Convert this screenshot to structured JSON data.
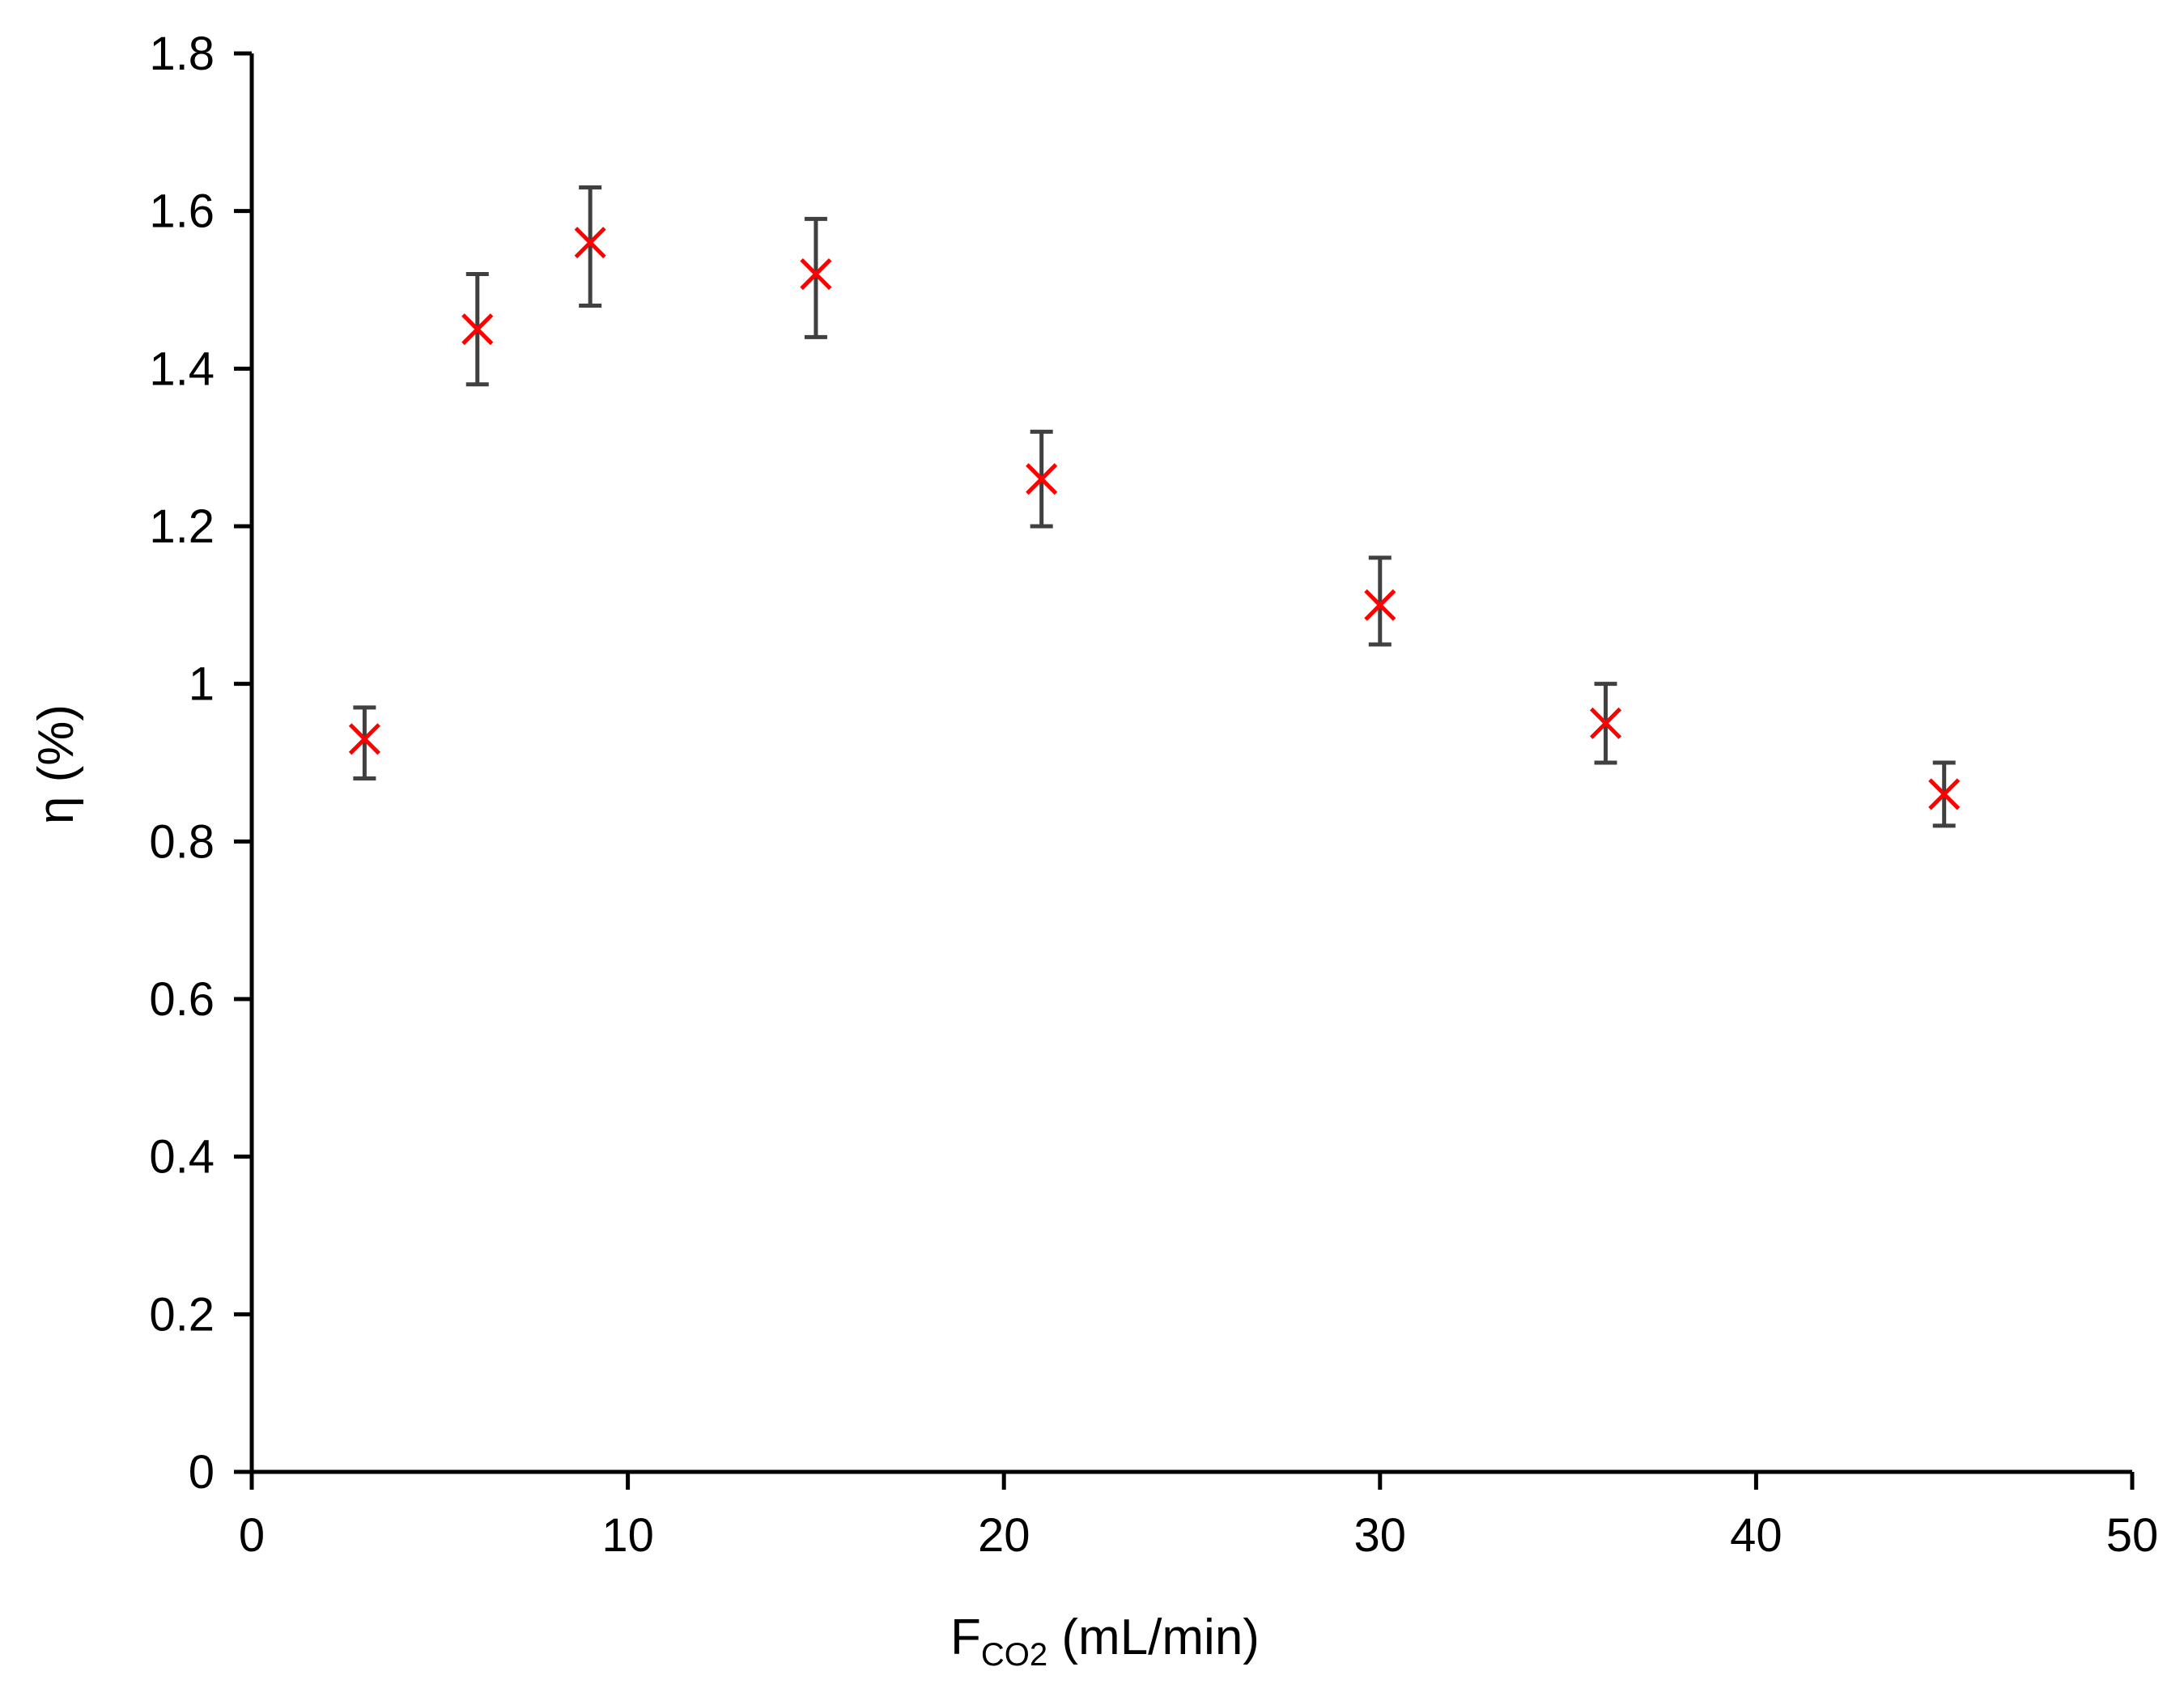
{
  "chart_data": {
    "type": "scatter",
    "title": "",
    "xlabel": {
      "main": "F",
      "sub": "CO2",
      "unit": " (mL/min)"
    },
    "ylabel": "η (%)",
    "xlim": [
      0,
      50
    ],
    "ylim": [
      0,
      1.8
    ],
    "x_ticks": [
      0,
      10,
      20,
      30,
      40,
      50
    ],
    "x_tick_labels": [
      "0",
      "10",
      "20",
      "30",
      "40",
      "50"
    ],
    "y_ticks": [
      0,
      0.2,
      0.4,
      0.6,
      0.8,
      1.0,
      1.2,
      1.4,
      1.6,
      1.8
    ],
    "y_tick_labels": [
      "0",
      "0.2",
      "0.4",
      "0.6",
      "0.8",
      "1",
      "1.2",
      "1.4",
      "1.6",
      "1.8"
    ],
    "grid": false,
    "legend": "none",
    "series": [
      {
        "marker": "x",
        "color": "#ff0000",
        "error_bar_color": "#404040",
        "x": [
          3,
          6,
          9,
          15,
          21,
          30,
          36,
          45
        ],
        "y": [
          0.93,
          1.45,
          1.56,
          1.52,
          1.26,
          1.1,
          0.95,
          0.86
        ],
        "y_err_low": [
          0.88,
          1.38,
          1.48,
          1.44,
          1.2,
          1.05,
          0.9,
          0.82
        ],
        "y_err_high": [
          0.97,
          1.52,
          1.63,
          1.59,
          1.32,
          1.16,
          1.0,
          0.9
        ]
      }
    ]
  }
}
